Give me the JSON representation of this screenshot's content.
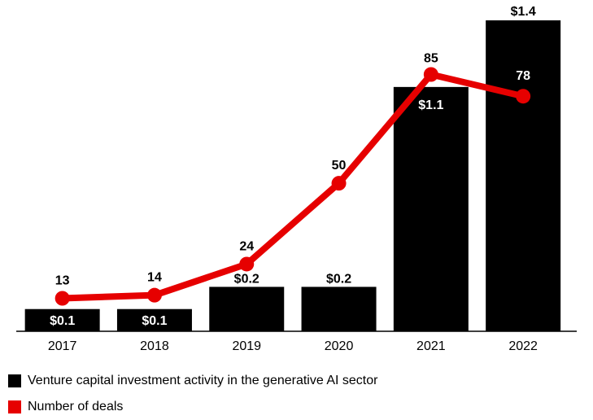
{
  "chart_data": {
    "type": "bar",
    "categories": [
      "2017",
      "2018",
      "2019",
      "2020",
      "2021",
      "2022"
    ],
    "series": [
      {
        "name": "Venture capital investment activity in the generative AI sector",
        "type": "bar",
        "values": [
          0.1,
          0.1,
          0.2,
          0.2,
          1.1,
          1.4
        ],
        "labels": [
          "$0.1",
          "$0.1",
          "$0.2",
          "$0.2",
          "$1.1",
          "$1.4"
        ],
        "color": "#000000"
      },
      {
        "name": "Number of deals",
        "type": "line",
        "values": [
          13,
          14,
          24,
          50,
          85,
          78
        ],
        "labels": [
          "13",
          "14",
          "24",
          "50",
          "85",
          "78"
        ],
        "color": "#e60000"
      }
    ],
    "title": "",
    "xlabel": "",
    "ylabel": "",
    "grid": false,
    "legend_position": "bottom-left"
  }
}
